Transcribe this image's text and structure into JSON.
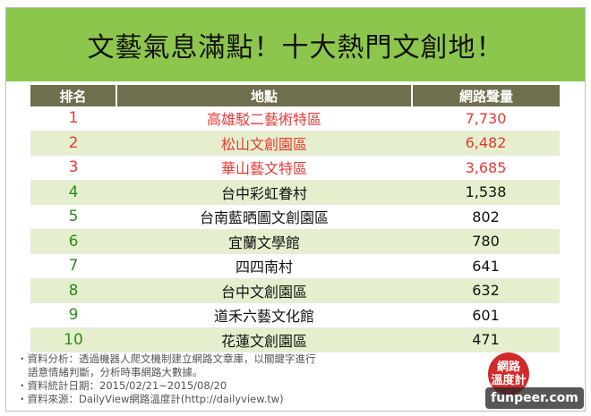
{
  "title": "文藝氣息滿點！十大熱門文創地！",
  "chart_data": {
    "type": "table",
    "columns": [
      "排名",
      "地點",
      "網路聲量"
    ],
    "rows": [
      {
        "rank": "1",
        "place": "高雄駁二藝術特區",
        "volume": "7,730"
      },
      {
        "rank": "2",
        "place": "松山文創園區",
        "volume": "6,482"
      },
      {
        "rank": "3",
        "place": "華山藝文特區",
        "volume": "3,685"
      },
      {
        "rank": "4",
        "place": "台中彩虹眷村",
        "volume": "1,538"
      },
      {
        "rank": "5",
        "place": "台南藍晒圖文創園區",
        "volume": "802"
      },
      {
        "rank": "6",
        "place": "宜蘭文學館",
        "volume": "780"
      },
      {
        "rank": "7",
        "place": "四四南村",
        "volume": "641"
      },
      {
        "rank": "8",
        "place": "台中文創園區",
        "volume": "632"
      },
      {
        "rank": "9",
        "place": "道禾六藝文化館",
        "volume": "601"
      },
      {
        "rank": "10",
        "place": "花蓮文創園區",
        "volume": "471"
      }
    ]
  },
  "notes": {
    "line1": "・資料分析：透過機器人爬文機制建立網路文章庫，以關鍵字進行",
    "line2": "語意情緒判斷，分析時事網路大數據。",
    "line3": "・資料統計日期：2015/02/21~2015/08/20",
    "line4": "・資料來源：DailyView網路溫度計(http://dailyview.tw)"
  },
  "seal": {
    "top": "網路",
    "bottom": "溫度計"
  },
  "watermark": "funpeer.com",
  "colors": {
    "title_bg": "#8dc64c",
    "header_bg": "#6f6f4f",
    "alt_row": "#e5efcd",
    "top_rank": "#e53935",
    "rank": "#2e8b1e",
    "seal": "#d12a2a"
  }
}
